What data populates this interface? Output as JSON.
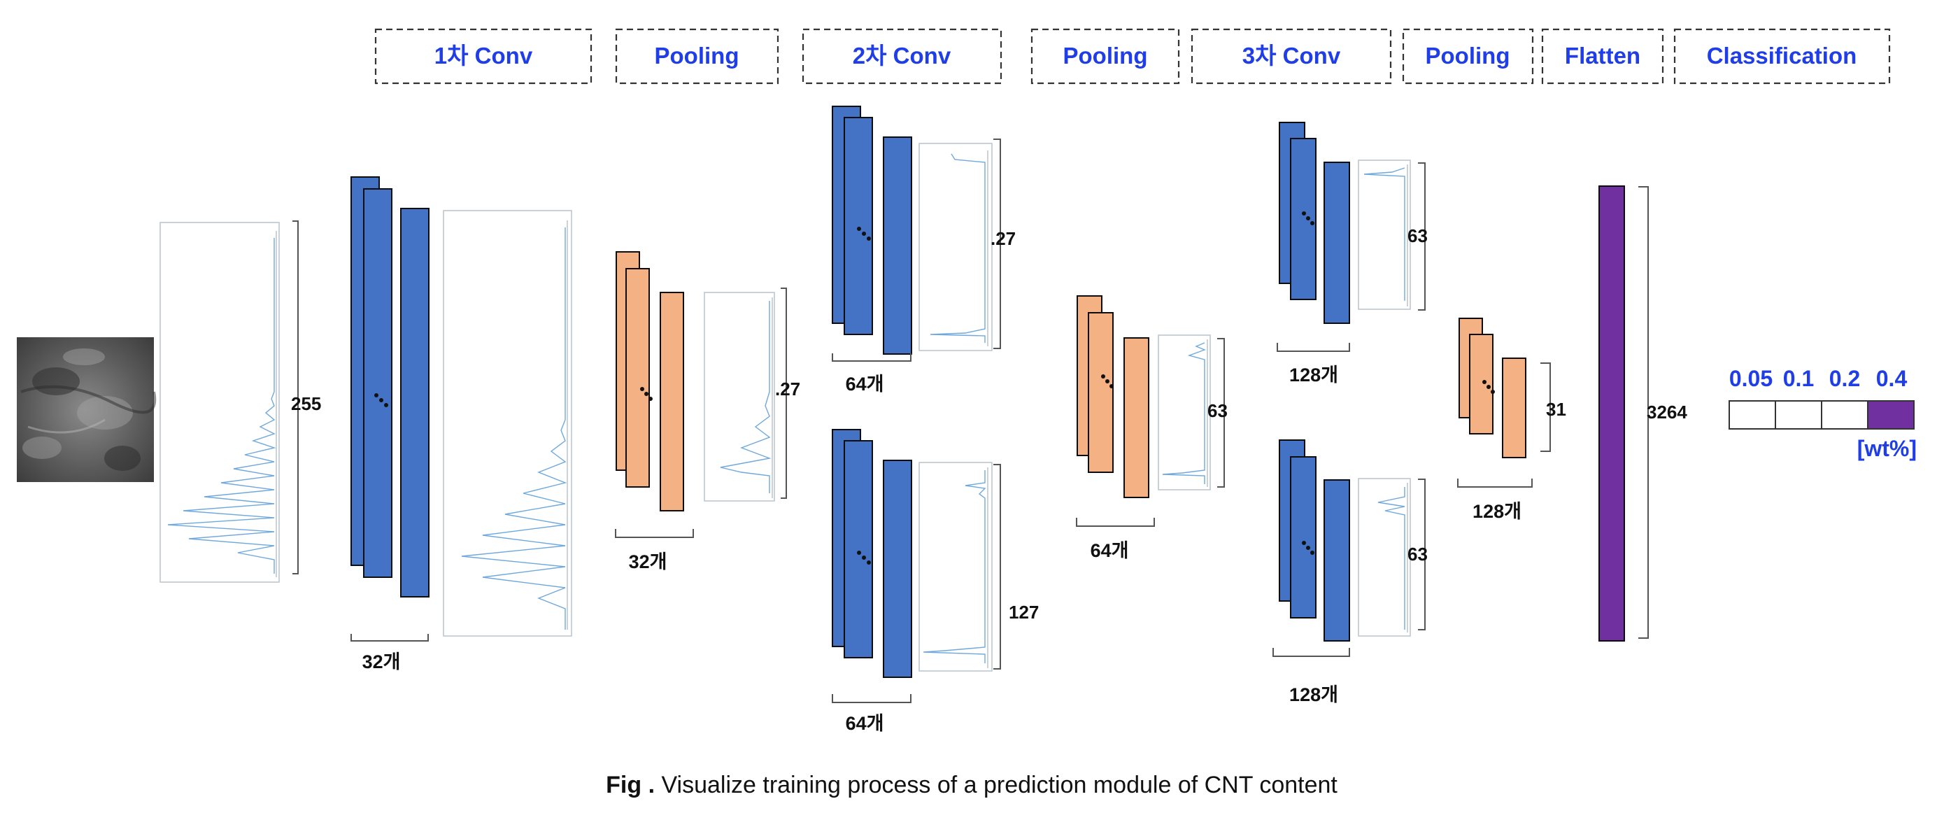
{
  "stages": [
    {
      "id": "conv1",
      "label": "1차 Conv"
    },
    {
      "id": "pool1",
      "label": "Pooling"
    },
    {
      "id": "conv2",
      "label": "2차 Conv"
    },
    {
      "id": "pool2",
      "label": "Pooling"
    },
    {
      "id": "conv3",
      "label": "3차 Conv"
    },
    {
      "id": "pool3",
      "label": "Pooling"
    },
    {
      "id": "flatten",
      "label": "Flatten"
    },
    {
      "id": "classification",
      "label": "Classification"
    }
  ],
  "dimensions": {
    "input": "255",
    "pool1": ".27",
    "conv2_top": ".27",
    "conv2_bottom": "127",
    "pool2": "63",
    "conv3_top": "63",
    "conv3_bottom": "63",
    "pool3": "31",
    "flatten": "3264"
  },
  "counts": {
    "conv1": "32개",
    "pool1": "32개",
    "conv2_top": "64개",
    "conv2_bottom": "64개",
    "pool2": "64개",
    "conv3_top": "128개",
    "conv3_bottom": "128개",
    "pool3": "128개"
  },
  "classification": {
    "values": [
      "0.05",
      "0.1",
      "0.2",
      "0.4"
    ],
    "highlighted_index": 3,
    "unit": "[wt%]"
  },
  "colors": {
    "stage_label": "#1f3ee8",
    "conv_map": "#4472c4",
    "pool_map": "#f4b183",
    "flatten_map": "#7030a0",
    "highlight_cell": "#7030a0",
    "spectrum_line": "#6fa8dc"
  },
  "caption": {
    "prefix": "Fig .",
    "text": " Visualize training process of a prediction module of CNT content"
  }
}
